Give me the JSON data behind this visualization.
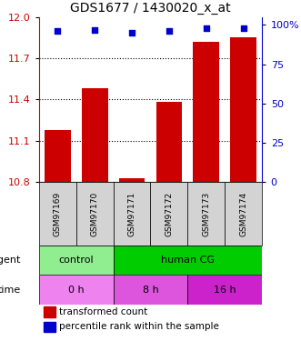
{
  "title": "GDS1677 / 1430020_x_at",
  "samples": [
    "GSM97169",
    "GSM97170",
    "GSM97171",
    "GSM97172",
    "GSM97173",
    "GSM97174"
  ],
  "bar_values": [
    11.18,
    11.48,
    10.83,
    11.38,
    11.82,
    11.85
  ],
  "dot_values": [
    96,
    97,
    95,
    96,
    98,
    98
  ],
  "bar_color": "#cc0000",
  "dot_color": "#0000cc",
  "left_ylim": [
    10.8,
    12.0
  ],
  "left_yticks": [
    10.8,
    11.1,
    11.4,
    11.7,
    12.0
  ],
  "right_ylim": [
    0,
    105
  ],
  "right_yticks": [
    0,
    25,
    50,
    75,
    100
  ],
  "right_yticklabels": [
    "0",
    "25",
    "50",
    "75",
    "100%"
  ],
  "grid_values": [
    11.1,
    11.4,
    11.7
  ],
  "agent_items": [
    {
      "text": "control",
      "start": 0,
      "end": 2,
      "color": "#90EE90"
    },
    {
      "text": "human CG",
      "start": 2,
      "end": 6,
      "color": "#00CC00"
    }
  ],
  "time_items": [
    {
      "text": "0 h",
      "start": 0,
      "end": 2,
      "color": "#EE82EE"
    },
    {
      "text": "8 h",
      "start": 2,
      "end": 4,
      "color": "#DD55DD"
    },
    {
      "text": "16 h",
      "start": 4,
      "end": 6,
      "color": "#CC22CC"
    }
  ],
  "legend_items": [
    {
      "color": "#cc0000",
      "label": "transformed count"
    },
    {
      "color": "#0000cc",
      "label": "percentile rank within the sample"
    }
  ],
  "left_axis_color": "#cc0000",
  "right_axis_color": "#0000cc",
  "n_samples": 6,
  "fig_width": 3.31,
  "fig_height": 3.75
}
